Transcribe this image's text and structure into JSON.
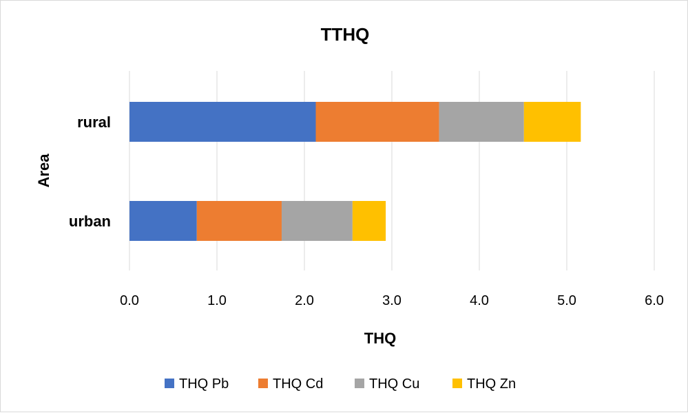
{
  "chart_data": {
    "type": "bar",
    "orientation": "horizontal",
    "stacked": true,
    "title": "TTHQ",
    "xlabel": "THQ",
    "ylabel": "Area",
    "categories": [
      "rural",
      "urban"
    ],
    "xlim": [
      0,
      6
    ],
    "xticks": [
      "0.0",
      "1.0",
      "2.0",
      "3.0",
      "4.0",
      "5.0",
      "6.0"
    ],
    "grid": true,
    "legend_position": "bottom",
    "series": [
      {
        "name": "THQ Pb",
        "color": "#4472C4",
        "values": [
          2.13,
          0.77
        ]
      },
      {
        "name": "THQ Cd",
        "color": "#ED7D31",
        "values": [
          1.41,
          0.97
        ]
      },
      {
        "name": "THQ Cu",
        "color": "#A5A5A5",
        "values": [
          0.97,
          0.81
        ]
      },
      {
        "name": "THQ Zn",
        "color": "#FFC000",
        "values": [
          0.65,
          0.38
        ]
      }
    ]
  }
}
